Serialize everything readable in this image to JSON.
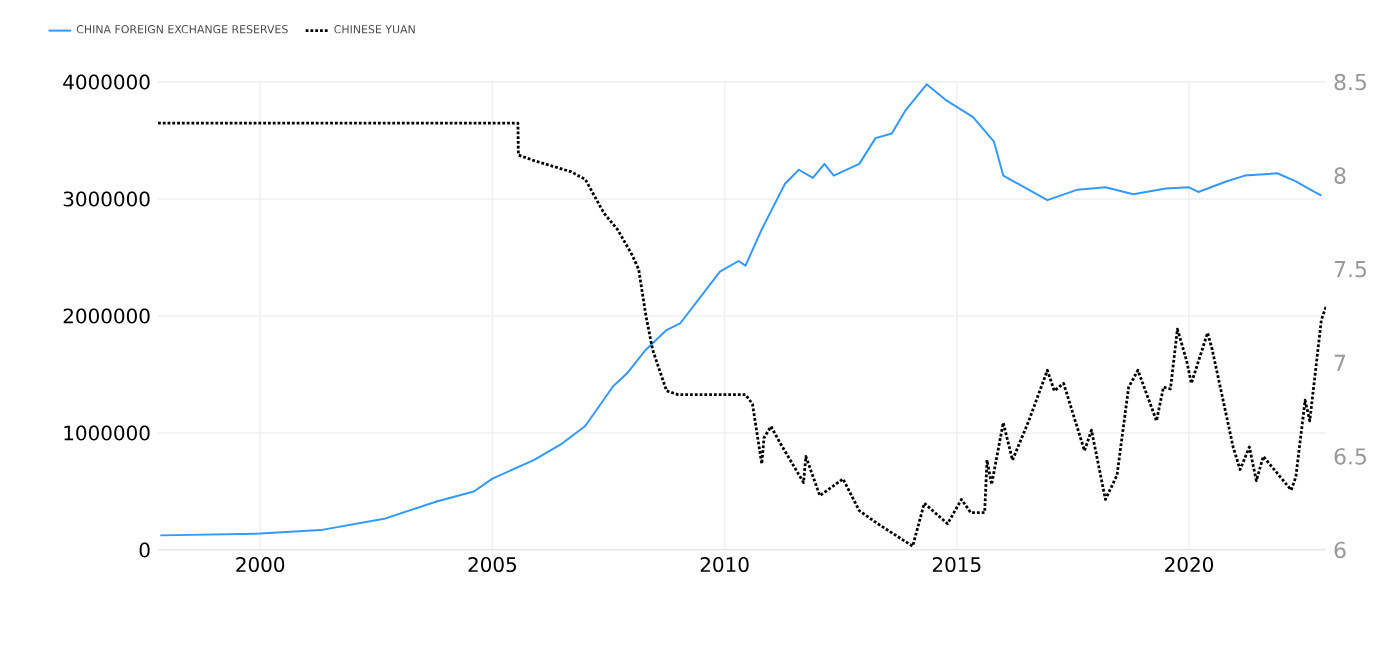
{
  "chart_data": {
    "type": "line",
    "xlim": [
      1997.8,
      2022.95
    ],
    "xticks": [
      2000,
      2005,
      2010,
      2015,
      2020
    ],
    "ylim": [
      0,
      4000000
    ],
    "yticks": [
      0,
      1000000,
      2000000,
      3000000,
      4000000
    ],
    "y2lim": [
      6,
      8.5
    ],
    "y2ticks": [
      6,
      6.5,
      7,
      7.5,
      8,
      8.5
    ],
    "grid": true,
    "legend": "top left",
    "series": [
      {
        "name": "CHINA FOREIGN EXCHANGE RESERVES",
        "color": "#3399ff",
        "line_style": "solid",
        "x": [
          1997.85,
          2000,
          2001.3,
          2002.7,
          2003.8,
          2004.6,
          2005.0,
          2005.9,
          2006.5,
          2007.0,
          2007.6,
          2007.9,
          2008.3,
          2008.75,
          2009.05,
          2009.9,
          2010.3,
          2010.45,
          2010.8,
          2011.3,
          2011.6,
          2011.9,
          2012.15,
          2012.35,
          2012.9,
          2013.25,
          2013.6,
          2013.9,
          2014.35,
          2014.75,
          2015.35,
          2015.8,
          2016.0,
          2016.95,
          2017.6,
          2018.2,
          2018.8,
          2019.5,
          2020.0,
          2020.2,
          2020.8,
          2021.2,
          2021.9,
          2022.3,
          2022.7,
          2022.85
        ],
        "values": [
          125000,
          140000,
          170000,
          270000,
          415000,
          500000,
          610000,
          770000,
          910000,
          1060000,
          1400000,
          1510000,
          1710000,
          1880000,
          1940000,
          2380000,
          2470000,
          2430000,
          2740000,
          3130000,
          3250000,
          3180000,
          3300000,
          3200000,
          3300000,
          3520000,
          3560000,
          3760000,
          3980000,
          3850000,
          3700000,
          3490000,
          3200000,
          2990000,
          3080000,
          3100000,
          3040000,
          3090000,
          3100000,
          3060000,
          3150000,
          3200000,
          3220000,
          3150000,
          3060000,
          3030000
        ]
      },
      {
        "name": "CHINESE YUAN",
        "color": "#000000",
        "axis": "y2",
        "line_style": "dotted",
        "x": [
          1997.8,
          2005.55,
          2005.56,
          2005.9,
          2006.7,
          2007.0,
          2007.4,
          2007.7,
          2008.0,
          2008.15,
          2008.3,
          2008.45,
          2008.75,
          2009.0,
          2010.45,
          2010.6,
          2010.8,
          2010.85,
          2011.0,
          2011.2,
          2011.7,
          2011.75,
          2012.05,
          2012.55,
          2012.9,
          2013.3,
          2014.05,
          2014.3,
          2014.8,
          2015.1,
          2015.3,
          2015.6,
          2015.65,
          2015.75,
          2016.0,
          2016.2,
          2016.55,
          2016.95,
          2017.1,
          2017.3,
          2017.75,
          2017.9,
          2018.2,
          2018.45,
          2018.7,
          2018.9,
          2019.3,
          2019.45,
          2019.6,
          2019.75,
          2019.95,
          2020.05,
          2020.4,
          2020.5,
          2020.95,
          2021.1,
          2021.3,
          2021.45,
          2021.6,
          2022.2,
          2022.3,
          2022.5,
          2022.6,
          2022.85,
          2022.95
        ],
        "values": [
          8.28,
          8.28,
          8.11,
          8.08,
          8.02,
          7.98,
          7.8,
          7.71,
          7.58,
          7.5,
          7.26,
          7.07,
          6.85,
          6.83,
          6.83,
          6.78,
          6.46,
          6.6,
          6.66,
          6.57,
          6.36,
          6.5,
          6.29,
          6.38,
          6.21,
          6.14,
          6.02,
          6.25,
          6.14,
          6.27,
          6.2,
          6.2,
          6.48,
          6.35,
          6.68,
          6.48,
          6.69,
          6.96,
          6.85,
          6.89,
          6.53,
          6.64,
          6.27,
          6.4,
          6.87,
          6.96,
          6.69,
          6.87,
          6.86,
          7.18,
          7.01,
          6.89,
          7.16,
          7.07,
          6.55,
          6.43,
          6.55,
          6.37,
          6.5,
          6.32,
          6.39,
          6.8,
          6.69,
          7.23,
          7.3
        ]
      }
    ]
  }
}
